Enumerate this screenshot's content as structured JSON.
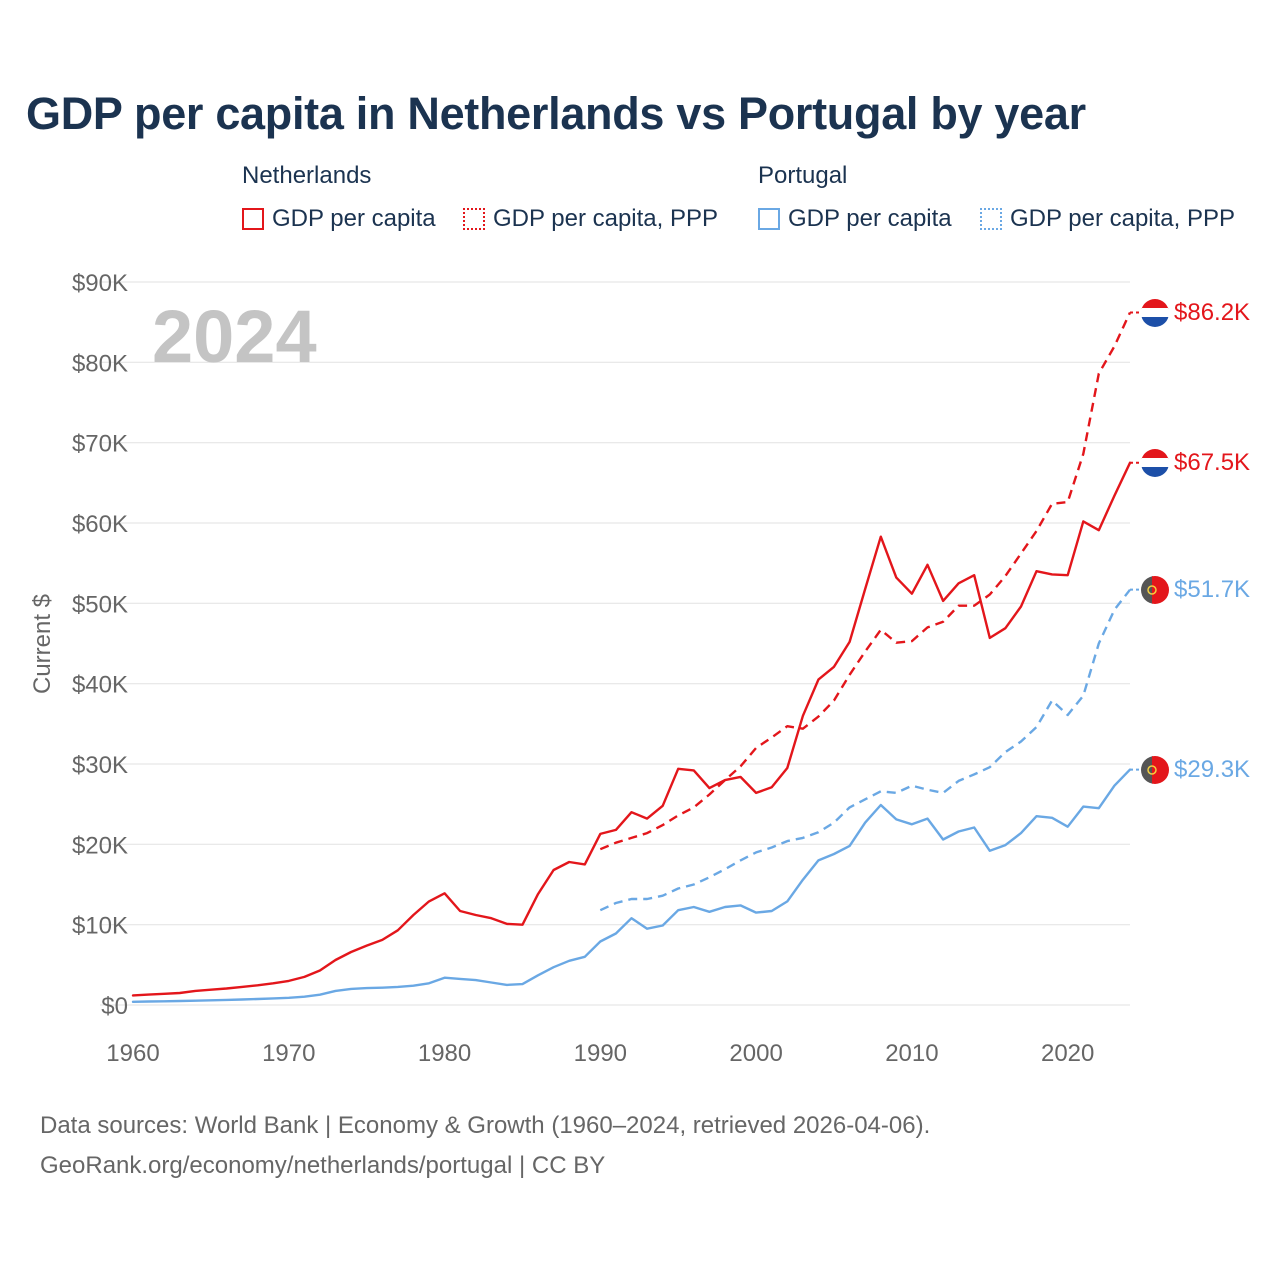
{
  "title": "GDP per capita in Netherlands vs Portugal by year",
  "legend": {
    "groups": [
      {
        "country": "Netherlands",
        "color": "#e3161b",
        "items": [
          {
            "label": "GDP per capita",
            "style": "solid"
          },
          {
            "label": "GDP per capita, PPP",
            "style": "dotted"
          }
        ]
      },
      {
        "country": "Portugal",
        "color": "#6aa8e4",
        "items": [
          {
            "label": "GDP per capita",
            "style": "solid"
          },
          {
            "label": "GDP per capita, PPP",
            "style": "dotted"
          }
        ]
      }
    ]
  },
  "year_label": "2024",
  "colors": {
    "netherlands": "#e3161b",
    "portugal": "#6aa8e4",
    "title": "#1b3350",
    "grid": "#e6e6e6",
    "axis_text": "#666666",
    "year_watermark": "#c4c4c4"
  },
  "chart_data": {
    "type": "line",
    "title": "GDP per capita in Netherlands vs Portugal by year",
    "xlabel": "",
    "ylabel": "Current $",
    "xlim": [
      1960,
      2024
    ],
    "ylim": [
      0,
      90000
    ],
    "x_ticks": [
      1960,
      1970,
      1980,
      1990,
      2000,
      2010,
      2020
    ],
    "y_ticks": [
      0,
      10000,
      20000,
      30000,
      40000,
      50000,
      60000,
      70000,
      80000,
      90000
    ],
    "y_tick_labels": [
      "$0",
      "$10K",
      "$20K",
      "$30K",
      "$40K",
      "$50K",
      "$60K",
      "$70K",
      "$80K",
      "$90K"
    ],
    "grid": true,
    "series": [
      {
        "name": "Netherlands GDP per capita",
        "country": "Netherlands",
        "style": "solid",
        "color": "#e3161b",
        "end_label": "$67.5K",
        "start_year": 1960,
        "values": [
          1200,
          1300,
          1400,
          1500,
          1750,
          1900,
          2050,
          2250,
          2450,
          2700,
          3000,
          3500,
          4300,
          5600,
          6600,
          7400,
          8100,
          9300,
          11200,
          12900,
          13900,
          11700,
          11200,
          10800,
          10100,
          10000,
          13800,
          16800,
          17800,
          17500,
          21300,
          21800,
          24000,
          23200,
          24800,
          29400,
          29200,
          27000,
          28000,
          28400,
          26400,
          27100,
          29500,
          36000,
          40500,
          42100,
          45200,
          51800,
          58300,
          53200,
          51200,
          54800,
          50300,
          52500,
          53500,
          45700,
          46900,
          49600,
          54000,
          53600,
          53500,
          60200,
          59100,
          63400,
          67500
        ]
      },
      {
        "name": "Netherlands GDP per capita, PPP",
        "country": "Netherlands",
        "style": "dashed",
        "color": "#e3161b",
        "end_label": "$86.2K",
        "start_year": 1990,
        "values": [
          19400,
          20200,
          20800,
          21400,
          22400,
          23600,
          24600,
          26200,
          28000,
          29700,
          32000,
          33300,
          34700,
          34400,
          35900,
          37900,
          41100,
          44000,
          46700,
          45100,
          45300,
          47000,
          47700,
          49700,
          49700,
          51100,
          53400,
          56200,
          59000,
          62400,
          62600,
          68600,
          78600,
          82000,
          86200
        ]
      },
      {
        "name": "Portugal GDP per capita",
        "country": "Portugal",
        "style": "solid",
        "color": "#6aa8e4",
        "end_label": "$29.3K",
        "start_year": 1960,
        "values": [
          400,
          430,
          460,
          500,
          540,
          580,
          630,
          690,
          750,
          820,
          900,
          1030,
          1280,
          1750,
          2000,
          2100,
          2150,
          2250,
          2400,
          2700,
          3400,
          3250,
          3100,
          2800,
          2500,
          2600,
          3700,
          4700,
          5500,
          6000,
          7900,
          8900,
          10800,
          9500,
          9900,
          11800,
          12200,
          11600,
          12200,
          12400,
          11500,
          11700,
          12900,
          15600,
          18000,
          18800,
          19800,
          22700,
          24900,
          23100,
          22500,
          23200,
          20600,
          21600,
          22100,
          19200,
          19900,
          21400,
          23500,
          23300,
          22200,
          24700,
          24500,
          27300,
          29300
        ]
      },
      {
        "name": "Portugal GDP per capita, PPP",
        "country": "Portugal",
        "style": "dashed",
        "color": "#6aa8e4",
        "end_label": "$51.7K",
        "start_year": 1990,
        "values": [
          11800,
          12700,
          13200,
          13200,
          13600,
          14500,
          15000,
          15900,
          16900,
          18000,
          19000,
          19600,
          20400,
          20800,
          21500,
          22700,
          24600,
          25600,
          26600,
          26400,
          27300,
          26800,
          26400,
          27900,
          28700,
          29600,
          31500,
          32800,
          34600,
          37900,
          36100,
          38500,
          45000,
          49200,
          51700
        ]
      }
    ]
  },
  "sources": {
    "line1": "Data sources: World Bank | Economy & Growth (1960–2024, retrieved 2026-04-06).",
    "line2": "GeoRank.org/economy/netherlands/portugal | CC BY"
  }
}
